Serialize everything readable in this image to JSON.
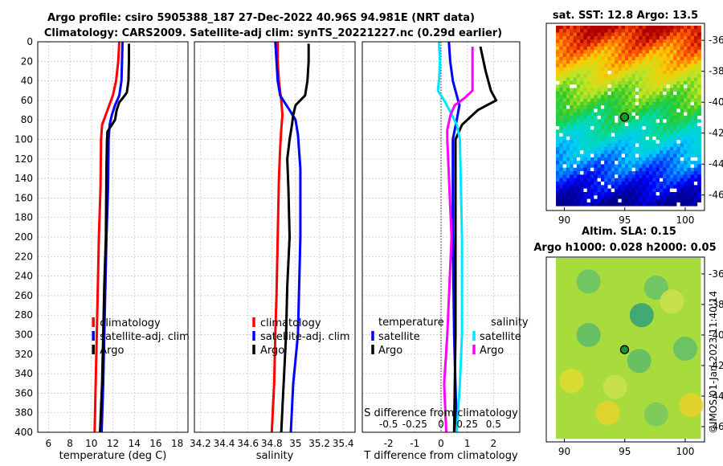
{
  "title": {
    "line1": "Argo profile: csiro 5905388_187 27-Dec-2022 40.96S 94.981E (NRT data)",
    "line2": "Climatology: CARS2009. Satellite-adj clim: synTS_20221227.nc (0.29d earlier)"
  },
  "colors": {
    "red": "#ff0000",
    "blue": "#0000ff",
    "black": "#000000",
    "cyan": "#00e5ff",
    "magenta": "#ff00ff"
  },
  "chart_data": [
    {
      "name": "temperature-panel",
      "type": "line",
      "xlabel": "temperature (deg C)",
      "xlim": [
        5,
        19
      ],
      "xticks": [
        6,
        8,
        10,
        12,
        14,
        16,
        18
      ],
      "ylim": [
        0,
        400
      ],
      "yticks": [
        0,
        20,
        40,
        60,
        80,
        100,
        120,
        140,
        160,
        180,
        200,
        220,
        240,
        260,
        280,
        300,
        320,
        340,
        360,
        380,
        400
      ],
      "legend": [
        "climatology",
        "satellite-adj. clim",
        "Argo"
      ],
      "series": [
        {
          "name": "climatology",
          "color": "red",
          "points": [
            [
              12.6,
              0
            ],
            [
              12.5,
              20
            ],
            [
              12.3,
              40
            ],
            [
              12.0,
              55
            ],
            [
              11.5,
              70
            ],
            [
              11.0,
              85
            ],
            [
              10.9,
              100
            ],
            [
              10.85,
              150
            ],
            [
              10.7,
              200
            ],
            [
              10.6,
              250
            ],
            [
              10.5,
              300
            ],
            [
              10.4,
              350
            ],
            [
              10.3,
              400
            ]
          ]
        },
        {
          "name": "satellite-adj. clim",
          "color": "blue",
          "points": [
            [
              12.9,
              0
            ],
            [
              12.85,
              20
            ],
            [
              12.8,
              40
            ],
            [
              12.6,
              55
            ],
            [
              12.2,
              65
            ],
            [
              11.9,
              75
            ],
            [
              11.7,
              85
            ],
            [
              11.6,
              100
            ],
            [
              11.55,
              150
            ],
            [
              11.4,
              200
            ],
            [
              11.3,
              250
            ],
            [
              11.2,
              300
            ],
            [
              11.1,
              350
            ],
            [
              10.95,
              400
            ]
          ]
        },
        {
          "name": "Argo",
          "color": "black",
          "points": [
            [
              13.5,
              2
            ],
            [
              13.5,
              20
            ],
            [
              13.45,
              40
            ],
            [
              13.3,
              52
            ],
            [
              12.9,
              58
            ],
            [
              12.6,
              62
            ],
            [
              12.35,
              70
            ],
            [
              12.2,
              80
            ],
            [
              11.5,
              92
            ],
            [
              11.45,
              100
            ],
            [
              11.4,
              130
            ],
            [
              11.35,
              200
            ],
            [
              11.2,
              250
            ],
            [
              11.1,
              300
            ],
            [
              11.0,
              350
            ],
            [
              10.8,
              400
            ]
          ]
        }
      ]
    },
    {
      "name": "salinity-panel",
      "type": "line",
      "xlabel": "salinity",
      "xlim": [
        34.15,
        35.5
      ],
      "xticks": [
        34.2,
        34.4,
        34.6,
        34.8,
        35,
        35.2,
        35.4
      ],
      "ylim": [
        0,
        400
      ],
      "legend": [
        "climatology",
        "satellite-adj. clim",
        "Argo"
      ],
      "series": [
        {
          "name": "climatology",
          "color": "red",
          "points": [
            [
              34.85,
              0
            ],
            [
              34.85,
              20
            ],
            [
              34.86,
              40
            ],
            [
              34.88,
              60
            ],
            [
              34.89,
              75
            ],
            [
              34.88,
              90
            ],
            [
              34.87,
              110
            ],
            [
              34.86,
              140
            ],
            [
              34.85,
              200
            ],
            [
              34.84,
              260
            ],
            [
              34.83,
              300
            ],
            [
              34.82,
              350
            ],
            [
              34.8,
              400
            ]
          ]
        },
        {
          "name": "satellite-adj. clim",
          "color": "blue",
          "points": [
            [
              34.83,
              0
            ],
            [
              34.84,
              20
            ],
            [
              34.85,
              40
            ],
            [
              34.87,
              55
            ],
            [
              34.95,
              70
            ],
            [
              35.0,
              80
            ],
            [
              35.02,
              95
            ],
            [
              35.04,
              130
            ],
            [
              35.04,
              200
            ],
            [
              35.03,
              250
            ],
            [
              35.02,
              300
            ],
            [
              34.98,
              350
            ],
            [
              34.96,
              400
            ]
          ]
        },
        {
          "name": "Argo",
          "color": "black",
          "points": [
            [
              35.11,
              2
            ],
            [
              35.11,
              20
            ],
            [
              35.1,
              40
            ],
            [
              35.08,
              55
            ],
            [
              35.0,
              65
            ],
            [
              34.98,
              75
            ],
            [
              34.97,
              85
            ],
            [
              34.95,
              100
            ],
            [
              34.93,
              120
            ],
            [
              34.94,
              150
            ],
            [
              34.95,
              200
            ],
            [
              34.93,
              250
            ],
            [
              34.92,
              300
            ],
            [
              34.9,
              350
            ],
            [
              34.88,
              400
            ]
          ]
        }
      ]
    },
    {
      "name": "difference-panel",
      "type": "line",
      "xlabel": "T difference from climatology",
      "xlim": [
        -3,
        3
      ],
      "xticks": [
        -2,
        -1,
        0,
        1,
        2
      ],
      "s_axis_label": "S difference from climatology",
      "s_tick_labels": [
        "-0.5",
        "-0.25",
        "0",
        "0.25",
        "0.5"
      ],
      "ylim": [
        0,
        400
      ],
      "legend_temperature": {
        "title": "temperature",
        "items": [
          "satellite",
          "Argo"
        ]
      },
      "legend_salinity": {
        "title": "salinity",
        "items": [
          "satellite",
          "Argo"
        ]
      },
      "series": [
        {
          "name": "temperature satellite",
          "color": "blue",
          "points": [
            [
              0.3,
              0
            ],
            [
              0.35,
              20
            ],
            [
              0.45,
              40
            ],
            [
              0.6,
              55
            ],
            [
              0.7,
              65
            ],
            [
              0.6,
              80
            ],
            [
              0.45,
              100
            ],
            [
              0.45,
              200
            ],
            [
              0.5,
              300
            ],
            [
              0.6,
              400
            ]
          ]
        },
        {
          "name": "temperature Argo",
          "color": "black",
          "points": [
            [
              1.5,
              5
            ],
            [
              1.7,
              30
            ],
            [
              1.9,
              50
            ],
            [
              2.1,
              60
            ],
            [
              1.4,
              70
            ],
            [
              0.8,
              85
            ],
            [
              0.55,
              100
            ],
            [
              0.55,
              200
            ],
            [
              0.55,
              300
            ],
            [
              0.5,
              400
            ]
          ]
        },
        {
          "name": "salinity satellite",
          "color": "cyan",
          "points": [
            [
              -0.02,
              0
            ],
            [
              -0.01,
              20
            ],
            [
              -0.02,
              40
            ],
            [
              -0.03,
              50
            ],
            [
              0.03,
              60
            ],
            [
              0.08,
              70
            ],
            [
              0.15,
              85
            ],
            [
              0.18,
              100
            ],
            [
              0.2,
              200
            ],
            [
              0.2,
              300
            ],
            [
              0.18,
              350
            ],
            [
              0.15,
              400
            ]
          ]
        },
        {
          "name": "salinity Argo",
          "color": "magenta",
          "points": [
            [
              0.3,
              5
            ],
            [
              0.3,
              30
            ],
            [
              0.3,
              50
            ],
            [
              0.22,
              58
            ],
            [
              0.13,
              65
            ],
            [
              0.09,
              75
            ],
            [
              0.06,
              90
            ],
            [
              0.06,
              100
            ],
            [
              0.1,
              200
            ],
            [
              0.06,
              300
            ],
            [
              0.03,
              350
            ],
            [
              0.05,
              400
            ]
          ]
        }
      ]
    },
    {
      "name": "sst-map",
      "type": "heatmap",
      "title": "sat. SST: 12.8 Argo: 13.5",
      "xlim": [
        88.5,
        101.6
      ],
      "ylim": [
        -47,
        -34.9
      ],
      "xticks": [
        90,
        95,
        100
      ],
      "yticks": [
        -36,
        -38,
        -40,
        -42,
        -44,
        -46
      ],
      "argo_marker": {
        "lon": 94.98,
        "lat": -40.96
      }
    },
    {
      "name": "sla-map",
      "type": "heatmap",
      "title_line1": "Altim. SLA: 0.15",
      "title_line2": "Argo h1000: 0.028 h2000: 0.05",
      "xlim": [
        88.5,
        101.6
      ],
      "ylim": [
        -47,
        -34.9
      ],
      "xticks": [
        90,
        95,
        100
      ],
      "yticks": [
        -36,
        -38,
        -40,
        -42,
        -44,
        -46
      ],
      "argo_marker": {
        "lon": 94.98,
        "lat": -40.96
      }
    }
  ],
  "credit": "©IMOS 01-Jan-2023 11:40:14"
}
